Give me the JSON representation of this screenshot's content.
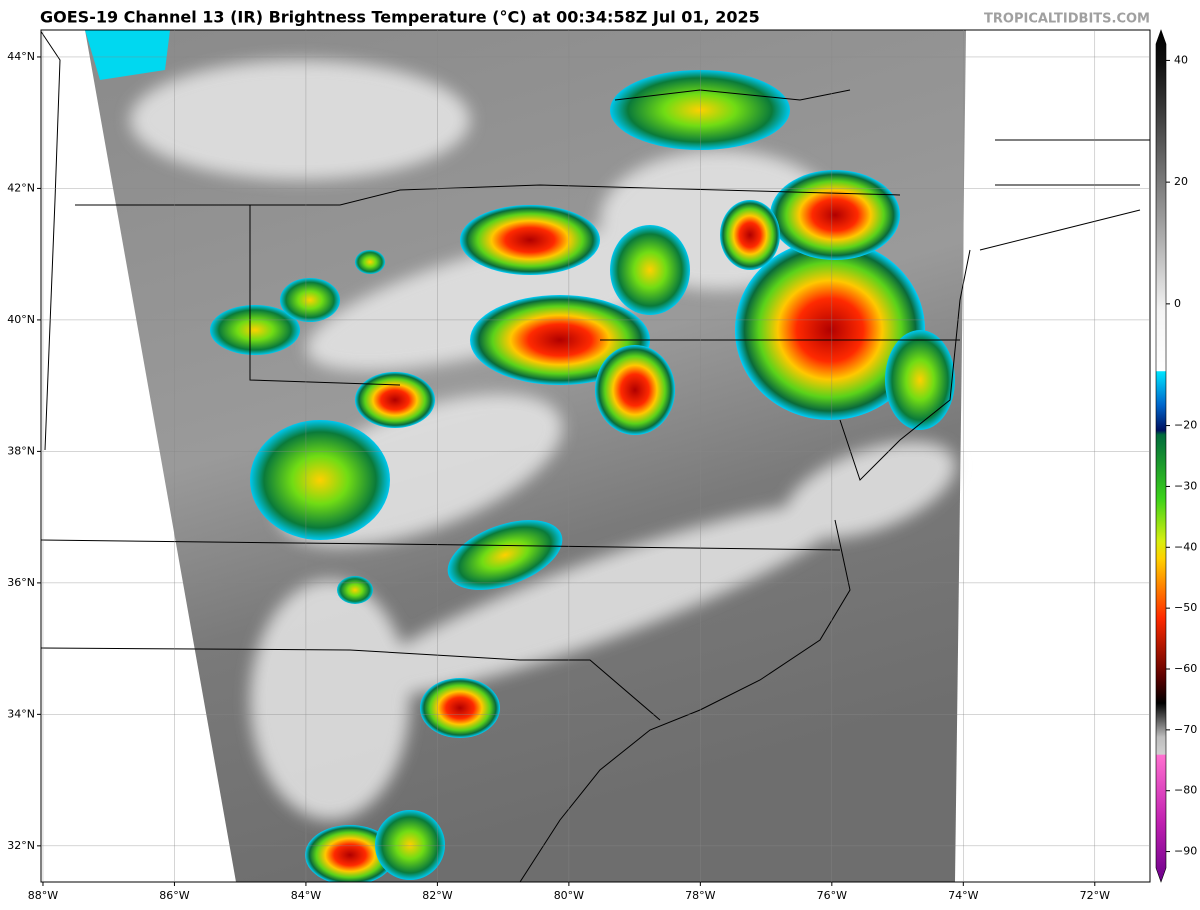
{
  "title": "GOES-19 Channel 13 (IR) Brightness Temperature (°C) at 00:34:58Z Jul 01, 2025",
  "credit": "TROPICALTIDBITS.COM",
  "map": {
    "xlim": [
      -88.03,
      -71.16
    ],
    "ylim": [
      31.45,
      44.41
    ],
    "xticks": [
      {
        "value": -88,
        "label": "88°W"
      },
      {
        "value": -86,
        "label": "86°W"
      },
      {
        "value": -84,
        "label": "84°W"
      },
      {
        "value": -82,
        "label": "82°W"
      },
      {
        "value": -80,
        "label": "80°W"
      },
      {
        "value": -78,
        "label": "78°W"
      },
      {
        "value": -76,
        "label": "76°W"
      },
      {
        "value": -74,
        "label": "74°W"
      },
      {
        "value": -72,
        "label": "72°W"
      }
    ],
    "yticks": [
      {
        "value": 32,
        "label": "32°N"
      },
      {
        "value": 34,
        "label": "34°N"
      },
      {
        "value": 36,
        "label": "36°N"
      },
      {
        "value": 38,
        "label": "38°N"
      },
      {
        "value": 40,
        "label": "40°N"
      },
      {
        "value": 42,
        "label": "42°N"
      },
      {
        "value": 44,
        "label": "44°N"
      }
    ]
  },
  "colorbar": {
    "clim": [
      -95,
      45
    ],
    "ticks": [
      40,
      20,
      0,
      {
        "value": -20,
        "label": "−20"
      },
      {
        "value": -30,
        "label": "−30"
      },
      {
        "value": -40,
        "label": "−40"
      },
      {
        "value": -50,
        "label": "−50"
      },
      {
        "value": -60,
        "label": "−60"
      },
      {
        "value": -70,
        "label": "−70"
      },
      {
        "value": -80,
        "label": "−80"
      },
      {
        "value": -90,
        "label": "−90"
      }
    ]
  }
}
